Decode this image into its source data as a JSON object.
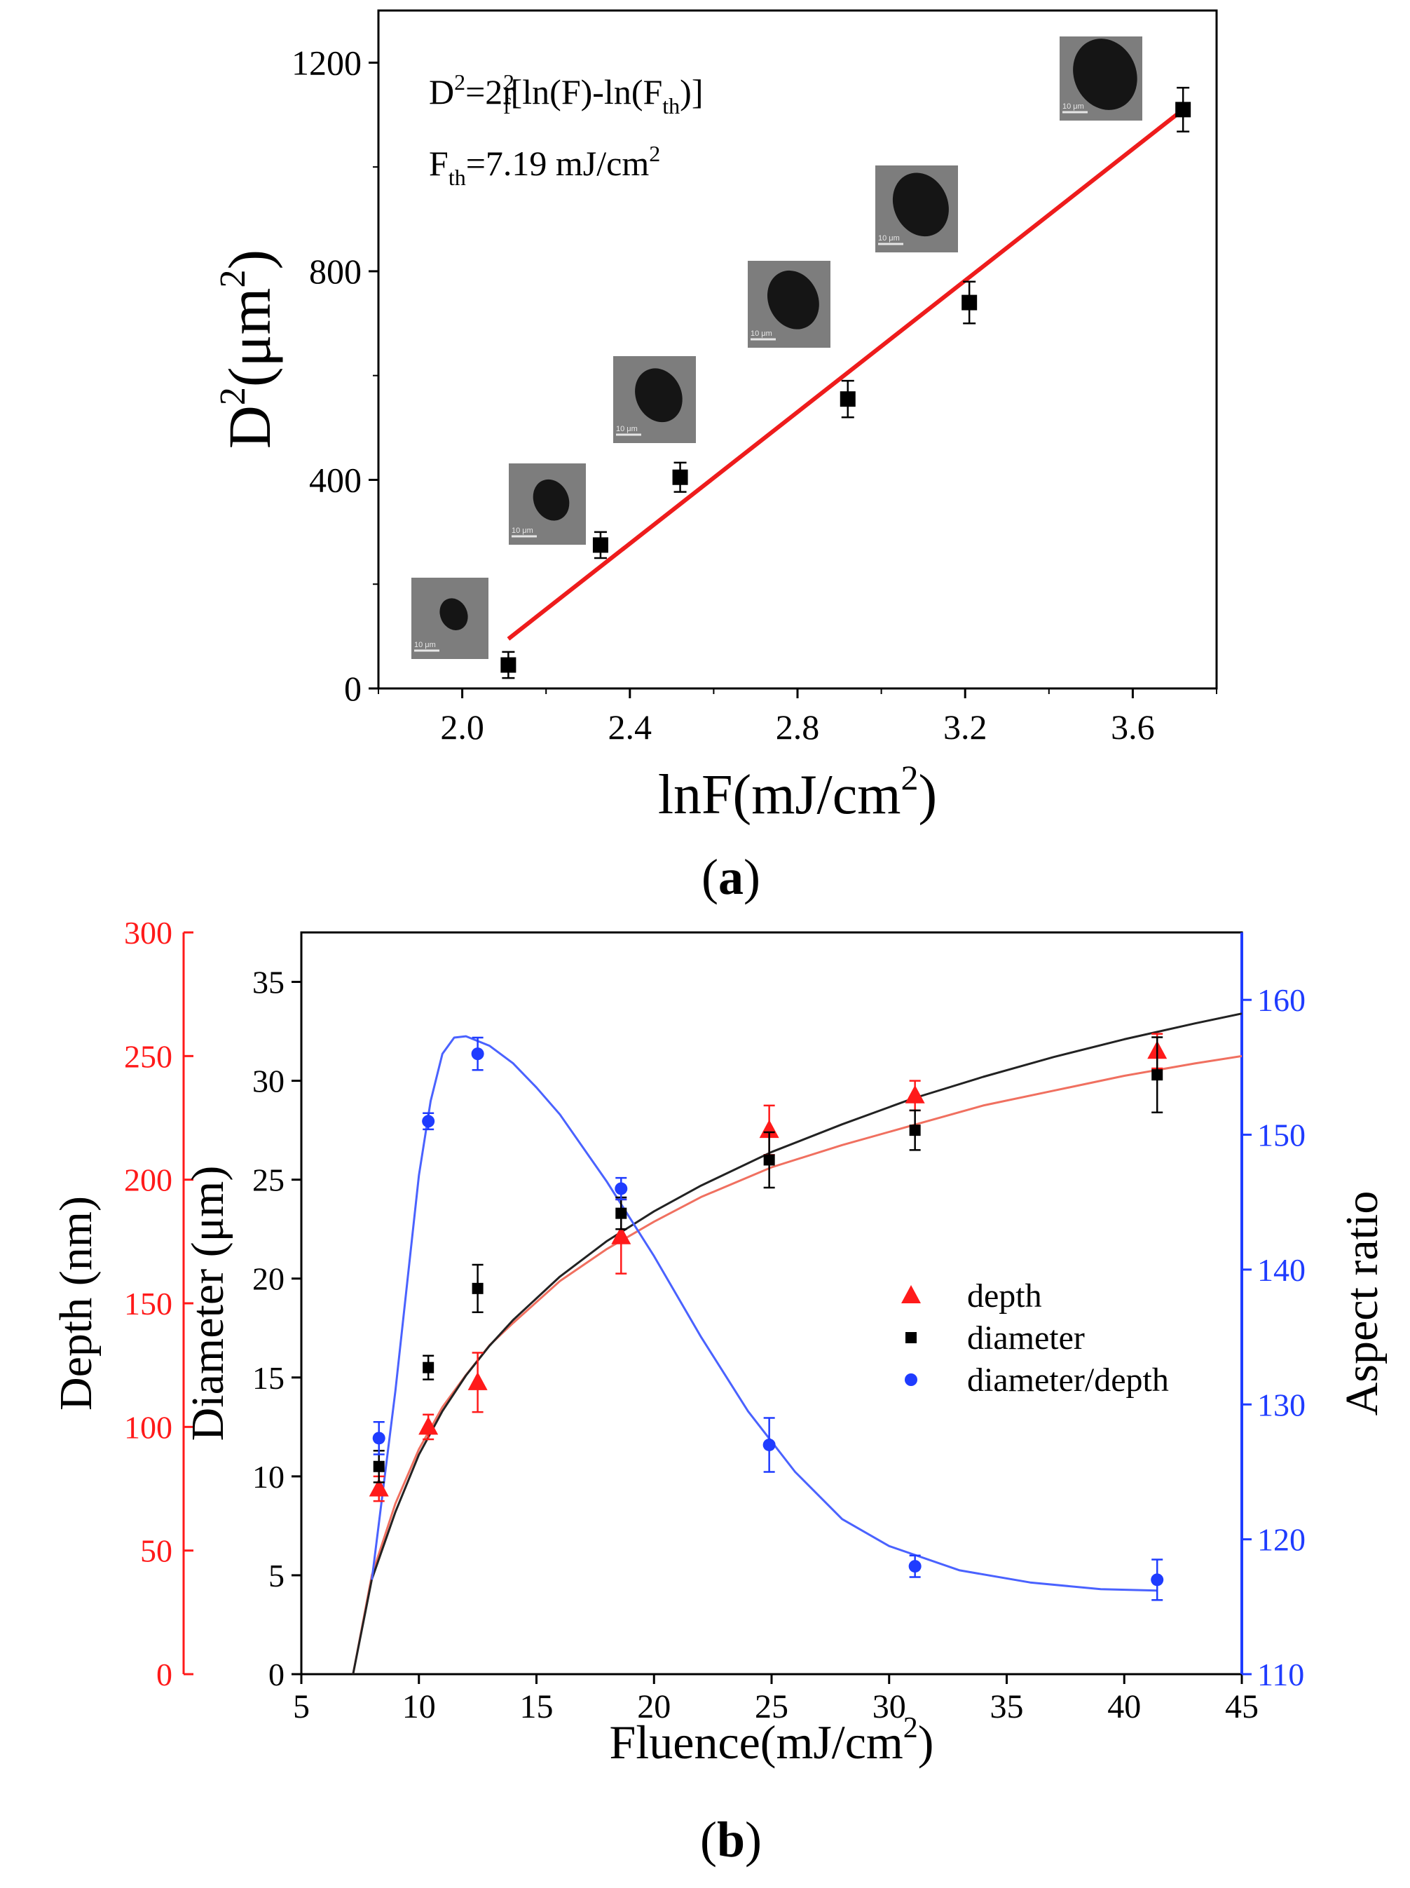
{
  "colors": {
    "axis": "#000000",
    "fit_a": "#ee1c1c",
    "depth": "#ff1a1a",
    "diameter": "#000000",
    "ratio": "#1f3cff",
    "fit_depth": "#f07060",
    "fit_diameter": "#222222",
    "fit_ratio": "#4a62ff",
    "inset_bg": "#7d7d7d",
    "inset_spot": "#151515"
  },
  "chart_data": [
    {
      "id": "a",
      "type": "scatter",
      "panel_label": "a",
      "xlabel": "lnF(mJ/cm²)",
      "ylabel": "D²(μm²)",
      "xlim": [
        1.8,
        3.8
      ],
      "ylim": [
        0,
        1300
      ],
      "xticks": [
        2.0,
        2.4,
        2.8,
        3.2,
        3.6
      ],
      "xtick_labels": [
        "2.0",
        "2.4",
        "2.8",
        "3.2",
        "3.6"
      ],
      "yticks": [
        0,
        400,
        800,
        1200
      ],
      "ytick_labels": [
        "0",
        "400",
        "800",
        "1200"
      ],
      "equation": "D²=2r_f²[ln(F)-ln(F_th)]",
      "threshold": "F_th=7.19 mJ/cm²",
      "series": [
        {
          "name": "D²",
          "x": [
            2.11,
            2.33,
            2.52,
            2.92,
            3.21,
            3.72
          ],
          "y": [
            45,
            275,
            405,
            555,
            740,
            1110
          ],
          "err": [
            25,
            25,
            28,
            35,
            40,
            42
          ]
        }
      ],
      "fit": {
        "x": [
          2.11,
          3.72
        ],
        "y": [
          95,
          1110
        ]
      },
      "insets": {
        "count": 6,
        "scale_text": "10 μm",
        "spot_size": [
          0.35,
          0.45,
          0.55,
          0.6,
          0.65,
          0.75
        ]
      }
    },
    {
      "id": "b",
      "type": "scatter",
      "panel_label": "b",
      "xlabel": "Fluence(mJ/cm²)",
      "xlim": [
        5,
        45
      ],
      "xticks": [
        5,
        10,
        15,
        20,
        25,
        30,
        35,
        40,
        45
      ],
      "xtick_labels": [
        "5",
        "10",
        "15",
        "20",
        "25",
        "30",
        "35",
        "40",
        "45"
      ],
      "axes": {
        "depth": {
          "label": "Depth (nm)",
          "ylim": [
            0,
            300
          ],
          "ticks": [
            0,
            50,
            100,
            150,
            200,
            250,
            300
          ],
          "tick_labels": [
            "0",
            "50",
            "100",
            "150",
            "200",
            "250",
            "300"
          ]
        },
        "diameter": {
          "label": "Diameter (μm)",
          "ylim": [
            0,
            37.5
          ],
          "ticks": [
            0,
            5,
            10,
            15,
            20,
            25,
            30,
            35
          ],
          "tick_labels": [
            "0",
            "5",
            "10",
            "15",
            "20",
            "25",
            "30",
            "35"
          ]
        },
        "ratio": {
          "label": "Aspect ratio",
          "ylim": [
            110,
            165
          ],
          "ticks": [
            110,
            120,
            130,
            140,
            150,
            160
          ],
          "tick_labels": [
            "110",
            "120",
            "130",
            "140",
            "150",
            "160"
          ]
        }
      },
      "legend": [
        "depth",
        "diameter",
        "diameter/depth"
      ],
      "series": [
        {
          "name": "depth",
          "axis": "depth",
          "marker": "triangle",
          "x": [
            8.3,
            10.4,
            12.5,
            18.6,
            24.9,
            31.1,
            41.4
          ],
          "y": [
            75,
            100,
            118,
            177,
            220,
            234,
            252
          ],
          "err": [
            5,
            5,
            12,
            15,
            10,
            6,
            7
          ]
        },
        {
          "name": "diameter",
          "axis": "diameter",
          "marker": "square",
          "x": [
            8.3,
            10.4,
            12.5,
            18.6,
            24.9,
            31.1,
            41.4
          ],
          "y": [
            10.5,
            15.5,
            19.5,
            23.3,
            26.0,
            27.5,
            30.3
          ],
          "err": [
            0.8,
            0.6,
            1.2,
            0.8,
            1.4,
            1.0,
            1.9
          ]
        },
        {
          "name": "diameter/depth",
          "axis": "ratio",
          "marker": "circle",
          "x": [
            8.3,
            10.4,
            12.5,
            18.6,
            24.9,
            31.1,
            41.4
          ],
          "y": [
            127.5,
            151,
            156,
            146,
            127,
            118,
            117
          ],
          "err": [
            1.2,
            0.6,
            1.2,
            0.8,
            2.0,
            0.8,
            1.5
          ]
        }
      ],
      "fits": [
        {
          "name": "depth fit",
          "axis": "depth",
          "x": [
            7.2,
            8,
            9,
            10,
            11,
            12,
            13,
            14,
            16,
            18,
            20,
            22,
            25,
            28,
            31,
            34,
            37,
            40,
            43,
            45
          ],
          "y": [
            0,
            40,
            69,
            91,
            108,
            121,
            133,
            142,
            159,
            172,
            183,
            193,
            205,
            214,
            222,
            230,
            236,
            242,
            247,
            250
          ]
        },
        {
          "name": "diameter fit",
          "axis": "diameter",
          "x": [
            7.2,
            8,
            9,
            10,
            11,
            12,
            13,
            14,
            16,
            18,
            20,
            22,
            25,
            28,
            31,
            34,
            37,
            40,
            43,
            45
          ],
          "y": [
            0,
            4.8,
            8.2,
            11.1,
            13.3,
            15.1,
            16.6,
            17.9,
            20.1,
            21.9,
            23.4,
            24.7,
            26.4,
            27.8,
            29.1,
            30.2,
            31.2,
            32.1,
            32.9,
            33.4
          ]
        },
        {
          "name": "ratio fit",
          "axis": "ratio",
          "x": [
            8.0,
            9,
            9.5,
            10,
            10.5,
            11,
            11.5,
            12,
            13,
            14,
            15,
            16,
            18,
            20,
            22,
            24,
            26,
            28,
            30,
            33,
            36,
            39,
            41.4
          ],
          "y": [
            117,
            131,
            139,
            147,
            152.5,
            156,
            157.2,
            157.3,
            156.6,
            155.3,
            153.5,
            151.5,
            146.5,
            141,
            135,
            129.5,
            125,
            121.5,
            119.5,
            117.7,
            116.8,
            116.3,
            116.2
          ]
        }
      ]
    }
  ]
}
